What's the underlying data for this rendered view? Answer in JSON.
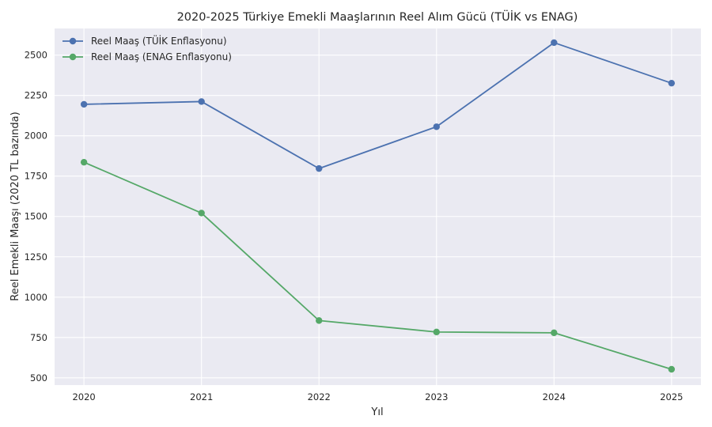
{
  "chart_data": {
    "type": "line",
    "title": "2020-2025 Türkiye Emekli Maaşlarının Reel Alım Gücü (TÜİK vs ENAG)",
    "xlabel": "Yıl",
    "ylabel": "Reel Emekli Maaşı (2020 TL bazında)",
    "x": [
      "2020",
      "2021",
      "2022",
      "2023",
      "2024",
      "2025"
    ],
    "xlim": [
      2019.75,
      2025.25
    ],
    "ylim": [
      455,
      2665
    ],
    "yticks": [
      500,
      750,
      1000,
      1250,
      1500,
      1750,
      2000,
      2250,
      2500
    ],
    "grid": true,
    "legend_position": "top-left",
    "series": [
      {
        "name": "Reel Maaş (TÜİK Enflasyonu)",
        "color": "#4c72b0",
        "values": [
          2195,
          2212,
          1797,
          2056,
          2577,
          2326
        ]
      },
      {
        "name": "Reel Maaş (ENAG Enflasyonu)",
        "color": "#55a868",
        "values": [
          1836,
          1521,
          855,
          784,
          779,
          553
        ]
      }
    ]
  }
}
